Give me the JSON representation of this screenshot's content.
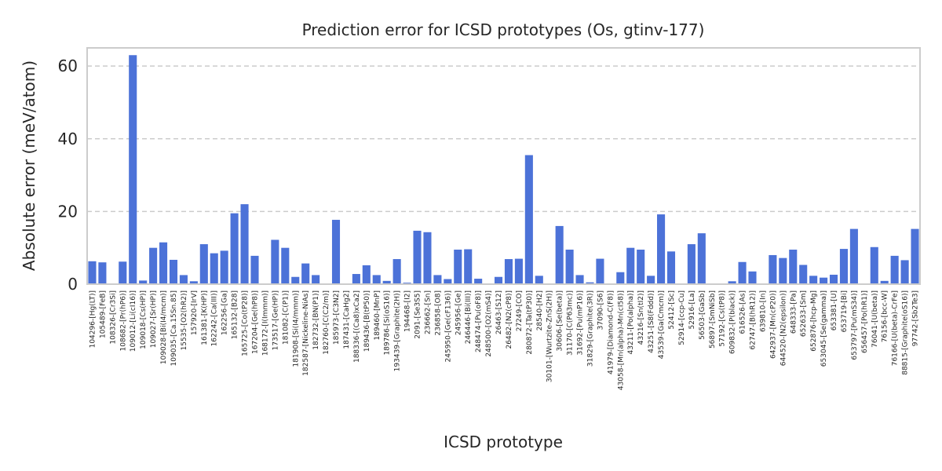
{
  "chart_data": {
    "type": "bar",
    "title": "Prediction error for ICSD prototypes (Os, gtinv-177)",
    "xlabel": "ICSD prototype",
    "ylabel": "Absolute error (meV/atom)",
    "ylim": [
      0,
      65
    ],
    "yticks": [
      0,
      20,
      40,
      60
    ],
    "grid": "y-dashed",
    "bar_color": "#4c72d8",
    "grid_color": "#cccccc",
    "axis_color": "#cccccc",
    "categories": [
      "104296-[Hg(LT)]",
      "105489-[FeB]",
      "108326-[Cr3Si]",
      "108682-[Pr(hP6)]",
      "109012-[Li(cI16)]",
      "109018-[Cs(HP)]",
      "109027-[Sr(HP)]",
      "109028-[Bi(I4/mcm)]",
      "109035-[Ca.15Sn.85]",
      "15535-[O2(hR2)]",
      "157920-[IrV]",
      "161381-[K(HP)]",
      "162242-[Ca(III)]",
      "162256-[Ga]",
      "165132-[B28]",
      "165725-[Co(tP28)]",
      "167204-[Ge(hP8)]",
      "168172-[I(Immm)]",
      "173517-[Ge(HP)]",
      "181082-[C(P1)]",
      "181908-[Si(I4/mmm)]",
      "182587-[Nickeline-NiAs]",
      "182732-[BN(P1)]",
      "182760-[C(C2/m)]",
      "185973-[C3N2]",
      "187431-[CaHg2]",
      "188336-[(Ca8)xCa2]",
      "189436-[B(tP50)]",
      "189460-[MnP]",
      "189786-[Si(oS16)]",
      "193439-[Graphite(2H)]",
      "194468-[I2]",
      "2091-[Se3S5]",
      "236662-[Sn]",
      "236858-[O8]",
      "245950-[Ge(cF136)]",
      "245956-[Ge]",
      "246446-[Bi(III)]",
      "248474-[Pu(oF8)]",
      "248500-[O2(mS4)]",
      "26463-[S12]",
      "26482-[N2(cP8)]",
      "27249-[CO]",
      "280872-[Ta(tP30)]",
      "28540-[H2]",
      "30101-[Wurtzite-ZnS(2H)]",
      "30606-[Se(beta)]",
      "31170-[C(P63mc)]",
      "31692-[Pu(mP16)]",
      "31829-[Graphite(3R)]",
      "37090-[S6]",
      "41979-[Diamond-C(F8)]",
      "43058-[Mn(alpha)-Mn(cI58)]",
      "43211-[Po(alpha)]",
      "43216-[Sn(tI2)]",
      "43251-[S8(Fddd)]",
      "43539-[Ga(Cmcm)]",
      "52412-[Sc]",
      "52914-[ccp-Cu]",
      "52916-[La]",
      "56503-[GaSb]",
      "56897-[SmNiSb]",
      "57192-[Cs(tP8)]",
      "609832-[P(black)]",
      "616526-[As]",
      "62747-[B(hR12)]",
      "639810-[In]",
      "642937-[Mn(cP20)]",
      "644520-[N2(epsilon)]",
      "648333-[Pa]",
      "652633-[Sm]",
      "652876-[hcp-Mg]",
      "653045-[Se(gamma)]",
      "653381-[U]",
      "653719-[Bi]",
      "653797-[Pu(mS34)]",
      "656457-[Po(hR1)]",
      "76041-[U(beta)]",
      "76156-[bcc-W]",
      "76166-[U(beta)-CrFe]",
      "88815-[Graphite(oS16)]",
      "97742-[Sb2Te3]"
    ],
    "values": [
      6.3,
      6.0,
      0,
      6.2,
      63.0,
      1.0,
      10.0,
      11.5,
      6.7,
      2.5,
      0.8,
      11.0,
      8.5,
      9.2,
      19.5,
      22.0,
      7.8,
      0,
      12.2,
      10.0,
      2.0,
      5.7,
      2.5,
      0,
      17.7,
      0,
      2.8,
      5.2,
      2.5,
      0.9,
      6.9,
      0.4,
      14.7,
      14.3,
      2.5,
      1.4,
      9.5,
      9.6,
      1.5,
      0,
      2.0,
      6.9,
      7.0,
      35.5,
      2.3,
      0,
      16.0,
      9.5,
      2.5,
      0.5,
      7.0,
      0,
      3.3,
      10.0,
      9.5,
      2.3,
      19.2,
      9.0,
      0,
      11.0,
      14.0,
      0,
      0,
      0.8,
      6.1,
      3.5,
      0,
      8.0,
      7.2,
      9.5,
      5.3,
      2.3,
      1.8,
      2.6,
      9.7,
      15.2,
      0,
      10.2,
      0.9,
      7.8,
      6.6,
      15.2
    ]
  }
}
